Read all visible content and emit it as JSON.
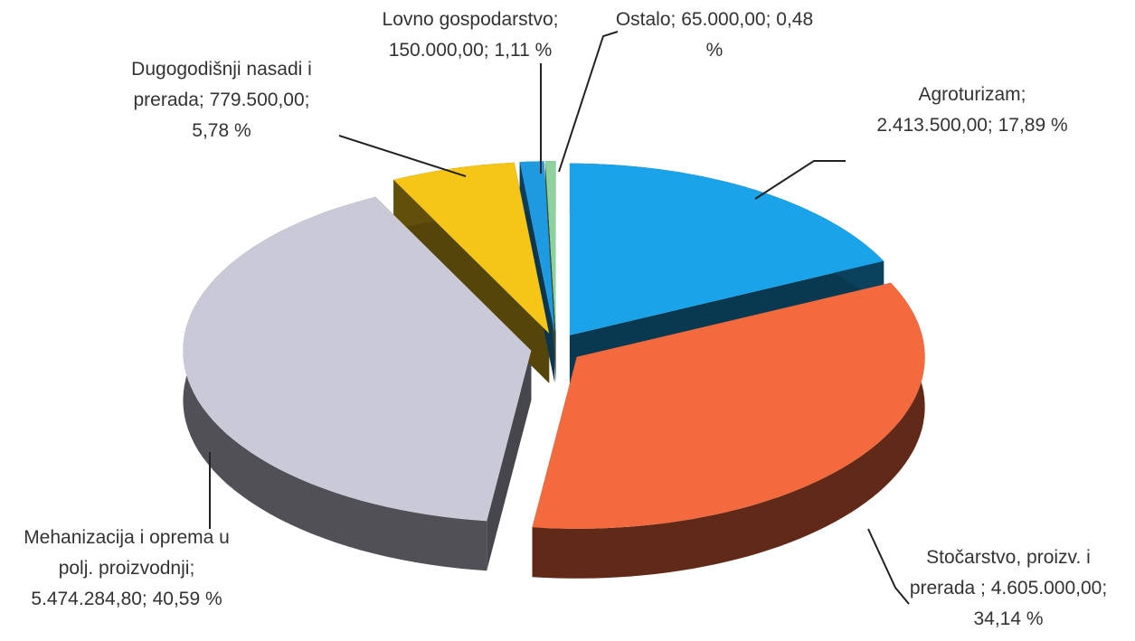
{
  "chart_data": {
    "type": "pie3d",
    "categories": [
      "Agroturizam;",
      "Stočarstvo, proizv. i prerada ;",
      "Mehanizacija i oprema u polj. proizvodnji;",
      "Dugogodišnji nasadi i prerada;",
      "Lovno gospodarstvo;",
      "Ostalo;"
    ],
    "values": [
      2413500,
      4605000,
      5474284.8,
      779500,
      150000,
      65000
    ],
    "value_labels": [
      "2.413.500,00;",
      "4.605.000,00;",
      "5.474.284,80;",
      "779.500,00;",
      "150.000,00;",
      "65.000,00;"
    ],
    "percents": [
      17.89,
      34.14,
      40.59,
      5.78,
      1.11,
      0.48
    ],
    "percent_labels": [
      "17,89 %",
      "34,14 %",
      "40,59 %",
      "5,78 %",
      "1,11 %",
      "0,48 %"
    ],
    "colors": [
      "#1aa3e8",
      "#f26a3d",
      "#c9c9d8",
      "#f5c518",
      "#1e9be0",
      "#8fd19e"
    ]
  }
}
